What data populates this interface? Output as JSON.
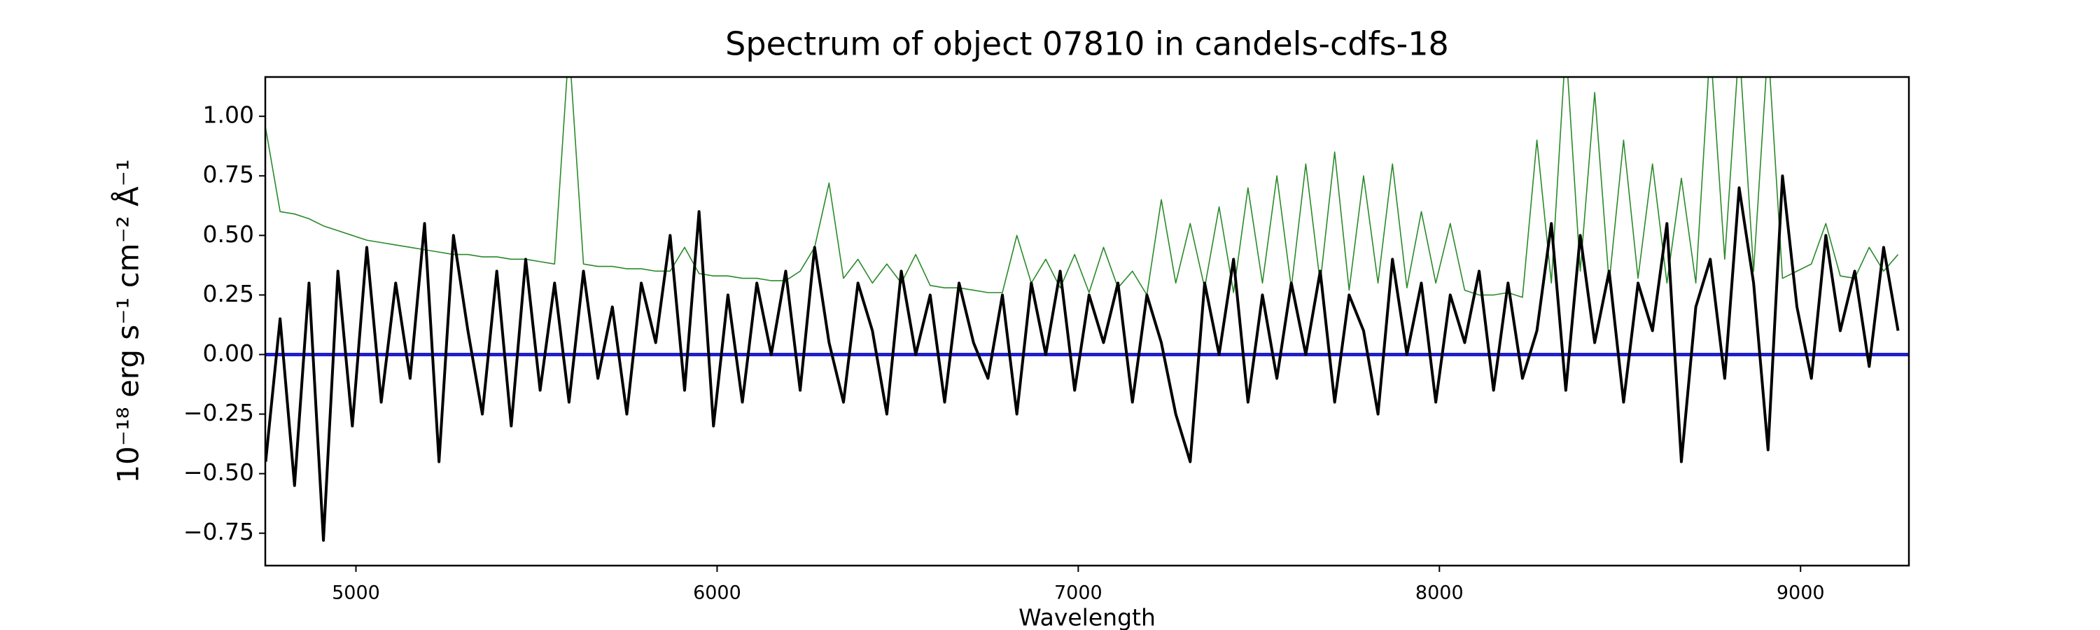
{
  "chart_data": {
    "type": "line",
    "title": "Spectrum of object 07810 in candels-cdfs-18",
    "x_label": "Wavelength",
    "y_label": "10⁻¹⁸ erg s⁻¹ cm⁻² Å⁻¹",
    "xlim": [
      4749,
      9300
    ],
    "ylim": [
      -0.886,
      1.165
    ],
    "xticks": [
      5000,
      6000,
      7000,
      8000,
      9000
    ],
    "yticks": [
      {
        "value": 1.0,
        "label": "1.00"
      },
      {
        "value": 0.75,
        "label": "0.75"
      },
      {
        "value": 0.5,
        "label": "0.50"
      },
      {
        "value": 0.25,
        "label": "0.25"
      },
      {
        "value": 0.0,
        "label": "0.00"
      },
      {
        "value": -0.25,
        "label": "−0.25"
      },
      {
        "value": -0.5,
        "label": "−0.50"
      },
      {
        "value": -0.75,
        "label": "−0.75"
      }
    ],
    "grid": false,
    "series": [
      {
        "color": "#2a8a2a",
        "width": 1.6,
        "x": [
          4750,
          4790,
          4830,
          4870,
          4910,
          4950,
          4990,
          5030,
          5070,
          5110,
          5150,
          5190,
          5230,
          5270,
          5310,
          5350,
          5390,
          5430,
          5470,
          5510,
          5550,
          5590,
          5630,
          5670,
          5710,
          5750,
          5790,
          5830,
          5870,
          5910,
          5950,
          5990,
          6030,
          6070,
          6110,
          6150,
          6190,
          6230,
          6270,
          6310,
          6350,
          6390,
          6430,
          6470,
          6510,
          6550,
          6590,
          6630,
          6670,
          6710,
          6750,
          6790,
          6830,
          6870,
          6910,
          6950,
          6990,
          7030,
          7070,
          7110,
          7150,
          7190,
          7230,
          7270,
          7310,
          7350,
          7390,
          7430,
          7470,
          7510,
          7550,
          7590,
          7630,
          7670,
          7710,
          7750,
          7790,
          7830,
          7870,
          7910,
          7950,
          7990,
          8030,
          8070,
          8110,
          8150,
          8190,
          8230,
          8270,
          8310,
          8350,
          8390,
          8430,
          8470,
          8510,
          8550,
          8590,
          8630,
          8670,
          8710,
          8750,
          8790,
          8830,
          8870,
          8910,
          8950,
          8990,
          9030,
          9070,
          9110,
          9150,
          9190,
          9230,
          9270
        ],
        "values": [
          0.95,
          0.6,
          0.59,
          0.57,
          0.54,
          0.52,
          0.5,
          0.48,
          0.47,
          0.46,
          0.45,
          0.44,
          0.43,
          0.42,
          0.42,
          0.41,
          0.41,
          0.4,
          0.4,
          0.39,
          0.38,
          1.3,
          0.38,
          0.37,
          0.37,
          0.36,
          0.36,
          0.35,
          0.35,
          0.45,
          0.34,
          0.33,
          0.33,
          0.32,
          0.32,
          0.31,
          0.31,
          0.35,
          0.45,
          0.72,
          0.32,
          0.4,
          0.3,
          0.38,
          0.3,
          0.42,
          0.29,
          0.28,
          0.28,
          0.27,
          0.26,
          0.26,
          0.5,
          0.3,
          0.4,
          0.28,
          0.42,
          0.26,
          0.45,
          0.28,
          0.35,
          0.25,
          0.65,
          0.3,
          0.55,
          0.28,
          0.62,
          0.26,
          0.7,
          0.3,
          0.75,
          0.28,
          0.8,
          0.3,
          0.85,
          0.27,
          0.75,
          0.3,
          0.8,
          0.28,
          0.6,
          0.3,
          0.55,
          0.27,
          0.25,
          0.25,
          0.26,
          0.24,
          0.9,
          0.3,
          1.3,
          0.35,
          1.1,
          0.3,
          0.9,
          0.32,
          0.8,
          0.3,
          0.74,
          0.3,
          1.3,
          0.4,
          1.3,
          0.35,
          1.3,
          0.32,
          0.35,
          0.38,
          0.55,
          0.33,
          0.32,
          0.45,
          0.35,
          0.42
        ]
      },
      {
        "color": "#1f1fcc",
        "width": 5,
        "x": [
          4749,
          9300
        ],
        "values": [
          0,
          0
        ]
      },
      {
        "color": "#000000",
        "width": 4,
        "x": [
          4750,
          4790,
          4830,
          4870,
          4910,
          4950,
          4990,
          5030,
          5070,
          5110,
          5150,
          5190,
          5230,
          5270,
          5310,
          5350,
          5390,
          5430,
          5470,
          5510,
          5550,
          5590,
          5630,
          5670,
          5710,
          5750,
          5790,
          5830,
          5870,
          5910,
          5950,
          5990,
          6030,
          6070,
          6110,
          6150,
          6190,
          6230,
          6270,
          6310,
          6350,
          6390,
          6430,
          6470,
          6510,
          6550,
          6590,
          6630,
          6670,
          6710,
          6750,
          6790,
          6830,
          6870,
          6910,
          6950,
          6990,
          7030,
          7070,
          7110,
          7150,
          7190,
          7230,
          7270,
          7310,
          7350,
          7390,
          7430,
          7470,
          7510,
          7550,
          7590,
          7630,
          7670,
          7710,
          7750,
          7790,
          7830,
          7870,
          7910,
          7950,
          7990,
          8030,
          8070,
          8110,
          8150,
          8190,
          8230,
          8270,
          8310,
          8350,
          8390,
          8430,
          8470,
          8510,
          8550,
          8590,
          8630,
          8670,
          8710,
          8750,
          8790,
          8830,
          8870,
          8910,
          8950,
          8990,
          9030,
          9070,
          9110,
          9150,
          9190,
          9230,
          9270
        ],
        "values": [
          -0.45,
          0.15,
          -0.55,
          0.3,
          -0.78,
          0.35,
          -0.3,
          0.45,
          -0.2,
          0.3,
          -0.1,
          0.55,
          -0.45,
          0.5,
          0.1,
          -0.25,
          0.35,
          -0.3,
          0.4,
          -0.15,
          0.3,
          -0.2,
          0.35,
          -0.1,
          0.2,
          -0.25,
          0.3,
          0.05,
          0.5,
          -0.15,
          0.6,
          -0.3,
          0.25,
          -0.2,
          0.3,
          0.0,
          0.35,
          -0.15,
          0.45,
          0.05,
          -0.2,
          0.3,
          0.1,
          -0.25,
          0.35,
          0.0,
          0.25,
          -0.2,
          0.3,
          0.05,
          -0.1,
          0.25,
          -0.25,
          0.3,
          0.0,
          0.35,
          -0.15,
          0.25,
          0.05,
          0.3,
          -0.2,
          0.25,
          0.05,
          -0.25,
          -0.45,
          0.3,
          0.0,
          0.4,
          -0.2,
          0.25,
          -0.1,
          0.3,
          0.0,
          0.35,
          -0.2,
          0.25,
          0.1,
          -0.25,
          0.4,
          0.0,
          0.3,
          -0.2,
          0.25,
          0.05,
          0.35,
          -0.15,
          0.3,
          -0.1,
          0.1,
          0.55,
          -0.15,
          0.5,
          0.05,
          0.35,
          -0.2,
          0.3,
          0.1,
          0.55,
          -0.45,
          0.2,
          0.4,
          -0.1,
          0.7,
          0.3,
          -0.4,
          0.75,
          0.2,
          -0.1,
          0.5,
          0.1,
          0.35,
          -0.05,
          0.45,
          0.1
        ]
      }
    ]
  }
}
